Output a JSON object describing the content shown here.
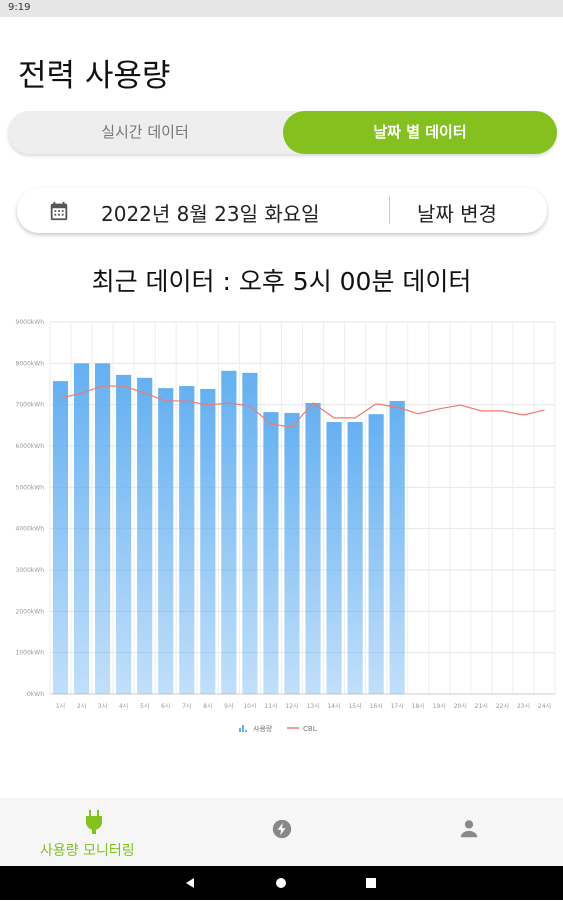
{
  "status_bar": {
    "time": "9:19"
  },
  "header": {
    "title": "전력 사용량"
  },
  "tabs": [
    "실시간 데이터",
    "날짜 별 데이터"
  ],
  "date_picker": {
    "date": "2022년 8월 23일 화요일",
    "button": "날짜 변경"
  },
  "chart_data": {
    "type": "bar",
    "title": "최근 데이터 : 오후 5시 00분 데이터",
    "categories": [
      "1시",
      "2시",
      "3시",
      "4시",
      "5시",
      "6시",
      "7시",
      "8시",
      "9시",
      "10시",
      "11시",
      "12시",
      "13시",
      "14시",
      "15시",
      "16시",
      "17시",
      "18시",
      "19시",
      "20시",
      "21시",
      "22시",
      "23시",
      "24시"
    ],
    "series": [
      {
        "name": "사용량",
        "type": "bar",
        "color": "#64b0f2",
        "values": [
          7570,
          8000,
          8000,
          7720,
          7650,
          7400,
          7450,
          7380,
          7820,
          7770,
          6820,
          6800,
          7040,
          6580,
          6580,
          6770,
          7090,
          null,
          null,
          null,
          null,
          null,
          null,
          null
        ]
      },
      {
        "name": "CBL",
        "type": "line",
        "color": "#f07a6a",
        "values": [
          7160,
          7280,
          7450,
          7450,
          7280,
          7090,
          7090,
          6990,
          7040,
          6970,
          6530,
          6460,
          7040,
          6680,
          6680,
          7020,
          6940,
          6780,
          6900,
          6990,
          6850,
          6850,
          6750,
          6870
        ]
      }
    ],
    "ylim": [
      0,
      9000
    ],
    "yticks": [
      {
        "value": 0,
        "label": "0kWh"
      },
      {
        "value": 1000,
        "label": "1000kWh"
      },
      {
        "value": 2000,
        "label": "2000kWh"
      },
      {
        "value": 3000,
        "label": "3000kWh"
      },
      {
        "value": 4000,
        "label": "4000kWh"
      },
      {
        "value": 5000,
        "label": "5000kWh"
      },
      {
        "value": 6000,
        "label": "6000kWh"
      },
      {
        "value": 7000,
        "label": "7000kWh"
      },
      {
        "value": 8000,
        "label": "8000kWh"
      },
      {
        "value": 9000,
        "label": "9000kWh"
      }
    ],
    "grid": true,
    "legend": "bottom"
  },
  "bottom_nav": {
    "items": [
      "사용량 모니터링"
    ]
  }
}
